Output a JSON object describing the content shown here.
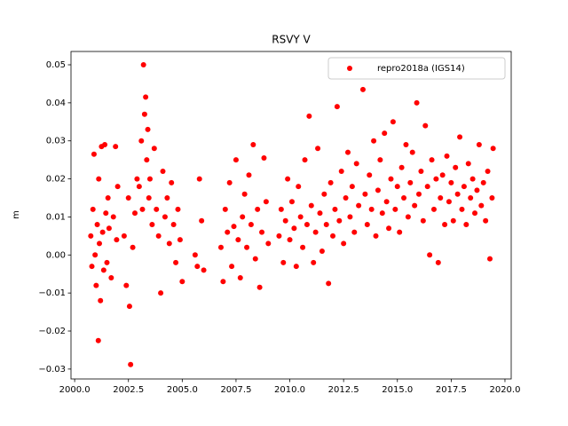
{
  "chart_data": {
    "type": "scatter",
    "title": "RSVY V",
    "ylabel": "m",
    "xlim": [
      1999.83,
      2020.29
    ],
    "ylim": [
      -0.0326,
      0.0535
    ],
    "xticks": [
      {
        "value": 2000,
        "label": "2000.0"
      },
      {
        "value": 2002.5,
        "label": "2002.5"
      },
      {
        "value": 2005,
        "label": "2005.0"
      },
      {
        "value": 2007.5,
        "label": "2007.5"
      },
      {
        "value": 2010,
        "label": "2010.0"
      },
      {
        "value": 2012.5,
        "label": "2012.5"
      },
      {
        "value": 2015,
        "label": "2015.0"
      },
      {
        "value": 2017.5,
        "label": "2017.5"
      },
      {
        "value": 2020,
        "label": "2020.0"
      }
    ],
    "yticks": [
      {
        "value": -0.03,
        "label": "−0.03"
      },
      {
        "value": -0.02,
        "label": "−0.02"
      },
      {
        "value": -0.01,
        "label": "−0.01"
      },
      {
        "value": 0,
        "label": "0.00"
      },
      {
        "value": 0.01,
        "label": "0.01"
      },
      {
        "value": 0.02,
        "label": "0.02"
      },
      {
        "value": 0.03,
        "label": "0.03"
      },
      {
        "value": 0.04,
        "label": "0.04"
      },
      {
        "value": 0.05,
        "label": "0.05"
      }
    ],
    "legend": "upper right",
    "x": [
      2000.75,
      2000.8,
      2000.85,
      2000.9,
      2000.95,
      2001.0,
      2001.05,
      2001.1,
      2001.12,
      2001.15,
      2001.2,
      2001.25,
      2001.3,
      2001.35,
      2001.4,
      2001.45,
      2001.5,
      2001.55,
      2001.6,
      2001.7,
      2001.8,
      2001.9,
      2001.95,
      2002.0,
      2002.3,
      2002.4,
      2002.5,
      2002.55,
      2002.6,
      2002.7,
      2002.8,
      2002.9,
      2003.0,
      2003.1,
      2003.15,
      2003.2,
      2003.25,
      2003.3,
      2003.35,
      2003.4,
      2003.45,
      2003.5,
      2003.6,
      2003.7,
      2003.8,
      2003.9,
      2004.0,
      2004.1,
      2004.2,
      2004.3,
      2004.4,
      2004.5,
      2004.6,
      2004.7,
      2004.8,
      2004.9,
      2005.0,
      2005.6,
      2005.7,
      2005.8,
      2005.9,
      2006.0,
      2006.8,
      2006.9,
      2007.0,
      2007.1,
      2007.2,
      2007.3,
      2007.4,
      2007.5,
      2007.6,
      2007.7,
      2007.8,
      2007.9,
      2008.0,
      2008.1,
      2008.2,
      2008.3,
      2008.4,
      2008.5,
      2008.6,
      2008.7,
      2008.8,
      2008.9,
      2009.0,
      2009.5,
      2009.6,
      2009.7,
      2009.8,
      2009.9,
      2010.0,
      2010.1,
      2010.2,
      2010.3,
      2010.4,
      2010.5,
      2010.6,
      2010.7,
      2010.8,
      2010.9,
      2011.0,
      2011.1,
      2011.2,
      2011.3,
      2011.4,
      2011.5,
      2011.6,
      2011.7,
      2011.8,
      2011.9,
      2012.0,
      2012.1,
      2012.2,
      2012.3,
      2012.4,
      2012.5,
      2012.6,
      2012.7,
      2012.8,
      2012.9,
      2013.0,
      2013.1,
      2013.2,
      2013.4,
      2013.5,
      2013.6,
      2013.7,
      2013.8,
      2013.9,
      2014.0,
      2014.1,
      2014.2,
      2014.3,
      2014.4,
      2014.5,
      2014.6,
      2014.7,
      2014.8,
      2014.9,
      2015.0,
      2015.1,
      2015.2,
      2015.3,
      2015.4,
      2015.5,
      2015.6,
      2015.7,
      2015.8,
      2015.9,
      2016.0,
      2016.1,
      2016.2,
      2016.3,
      2016.4,
      2016.5,
      2016.6,
      2016.7,
      2016.8,
      2016.9,
      2017.0,
      2017.1,
      2017.2,
      2017.3,
      2017.4,
      2017.5,
      2017.6,
      2017.7,
      2017.8,
      2017.9,
      2018.0,
      2018.1,
      2018.2,
      2018.3,
      2018.4,
      2018.5,
      2018.6,
      2018.7,
      2018.8,
      2018.9,
      2019.0,
      2019.1,
      2019.2,
      2019.3,
      2019.4,
      2019.45
    ],
    "series": [
      {
        "name": "repro2018a (IGS14)",
        "color": "#ff0000",
        "values": [
          0.005,
          -0.003,
          0.012,
          0.0265,
          0.0,
          -0.008,
          0.008,
          -0.0225,
          0.02,
          0.003,
          -0.012,
          0.0285,
          0.006,
          -0.004,
          0.029,
          0.011,
          -0.002,
          0.015,
          0.007,
          -0.006,
          0.01,
          0.0285,
          0.004,
          0.018,
          0.005,
          -0.008,
          0.015,
          -0.0135,
          -0.0288,
          0.002,
          0.011,
          0.02,
          0.018,
          0.03,
          0.012,
          0.05,
          0.037,
          0.0415,
          0.025,
          0.033,
          0.015,
          0.02,
          0.008,
          0.028,
          0.012,
          0.005,
          -0.01,
          0.022,
          0.01,
          0.015,
          0.003,
          0.019,
          0.008,
          -0.002,
          0.012,
          0.004,
          -0.007,
          0.0,
          -0.003,
          0.02,
          0.009,
          -0.004,
          0.002,
          -0.007,
          0.012,
          0.006,
          0.019,
          -0.003,
          0.0075,
          0.025,
          0.004,
          -0.006,
          0.01,
          0.016,
          0.002,
          0.021,
          0.008,
          0.029,
          -0.001,
          0.012,
          -0.0085,
          0.006,
          0.0255,
          0.014,
          0.003,
          0.005,
          0.012,
          -0.002,
          0.009,
          0.02,
          0.004,
          0.014,
          0.007,
          -0.003,
          0.018,
          0.01,
          0.002,
          0.025,
          0.008,
          0.0365,
          0.013,
          -0.002,
          0.006,
          0.028,
          0.011,
          0.001,
          0.016,
          0.008,
          -0.0075,
          0.019,
          0.005,
          0.012,
          0.039,
          0.009,
          0.022,
          0.003,
          0.015,
          0.027,
          0.01,
          0.018,
          0.006,
          0.024,
          0.013,
          0.0435,
          0.016,
          0.008,
          0.021,
          0.012,
          0.03,
          0.005,
          0.017,
          0.025,
          0.011,
          0.032,
          0.014,
          0.007,
          0.02,
          0.035,
          0.012,
          0.018,
          0.006,
          0.023,
          0.015,
          0.029,
          0.01,
          0.019,
          0.027,
          0.013,
          0.04,
          0.016,
          0.022,
          0.009,
          0.034,
          0.018,
          0.0,
          0.025,
          0.012,
          0.02,
          -0.002,
          0.015,
          0.021,
          0.008,
          0.026,
          0.014,
          0.019,
          0.009,
          0.023,
          0.016,
          0.031,
          0.012,
          0.018,
          0.008,
          0.024,
          0.015,
          0.02,
          0.011,
          0.017,
          0.029,
          0.013,
          0.019,
          0.009,
          0.022,
          -0.001,
          0.015,
          0.028
        ]
      }
    ]
  }
}
